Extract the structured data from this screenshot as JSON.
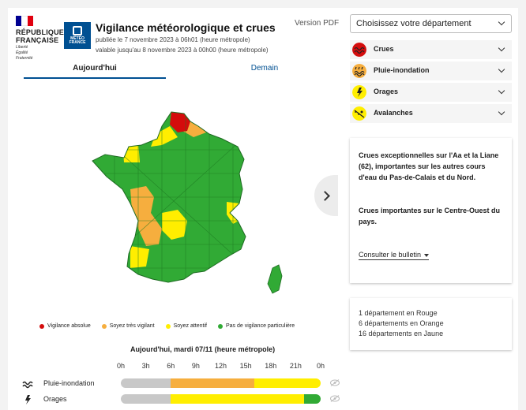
{
  "header": {
    "rf_title_line1": "RÉPUBLIQUE",
    "rf_title_line2": "FRANÇAISE",
    "rf_motto": [
      "Liberté",
      "Égalité",
      "Fraternité"
    ],
    "mf_logo_text": [
      "MÉTÉO",
      "FRANCE"
    ],
    "title": "Vigilance météorologique et crues",
    "published": "publiée le 7 novembre 2023 à 06h01 (heure métropole)",
    "valid_until": "valable jusqu'au 8 novembre 2023 à 00h00 (heure métropole)",
    "pdf_label": "Version PDF"
  },
  "tabs": [
    {
      "label": "Aujourd'hui",
      "active": true
    },
    {
      "label": "Demain",
      "active": false
    }
  ],
  "colors": {
    "red": "#d40c0c",
    "orange": "#f6ae3e",
    "yellow": "#ffee00",
    "green": "#31aa35",
    "grey": "#c8c8c8",
    "brand": "#005092"
  },
  "legend": [
    {
      "label": "Vigilance absolue",
      "color": "#d40c0c"
    },
    {
      "label": "Soyez très vigilant",
      "color": "#f6ae3e"
    },
    {
      "label": "Soyez attentif",
      "color": "#ffee00"
    },
    {
      "label": "Pas de vigilance particulière",
      "color": "#31aa35"
    }
  ],
  "timeline": {
    "title": "Aujourd'hui, mardi 07/11 (heure métropole)",
    "hours": [
      "0h",
      "3h",
      "6h",
      "9h",
      "12h",
      "15h",
      "18h",
      "21h",
      "0h"
    ],
    "rows": [
      {
        "label": "Pluie-inondation",
        "icon": "rain-flood-icon",
        "segments": [
          {
            "hours": 6,
            "color": "#c8c8c8"
          },
          {
            "hours": 10,
            "color": "#f6ae3e"
          },
          {
            "hours": 8,
            "color": "#ffee00"
          }
        ]
      },
      {
        "label": "Orages",
        "icon": "thunderstorm-icon",
        "segments": [
          {
            "hours": 6,
            "color": "#c8c8c8"
          },
          {
            "hours": 16,
            "color": "#ffee00"
          },
          {
            "hours": 2,
            "color": "#31aa35"
          }
        ]
      }
    ]
  },
  "department_select": {
    "placeholder": "Choisissez votre département"
  },
  "phenomena": [
    {
      "label": "Crues",
      "icon": "flood-icon",
      "color": "#d40c0c"
    },
    {
      "label": "Pluie-inondation",
      "icon": "rain-flood-icon",
      "color": "#f6ae3e"
    },
    {
      "label": "Orages",
      "icon": "thunderstorm-icon",
      "color": "#ffee00"
    },
    {
      "label": "Avalanches",
      "icon": "avalanche-icon",
      "color": "#ffee00"
    }
  ],
  "bulletin_card": {
    "text1": "Crues exceptionnelles sur l'Aa et la Liane (62), importantes sur les autres cours d'eau du Pas-de-Calais et du Nord.",
    "text2": "Crues importantes sur le Centre-Ouest du pays.",
    "link_label": "Consulter le bulletin"
  },
  "summary": [
    "1 département en Rouge",
    "6 départements en Orange",
    "16 départements en Jaune"
  ]
}
